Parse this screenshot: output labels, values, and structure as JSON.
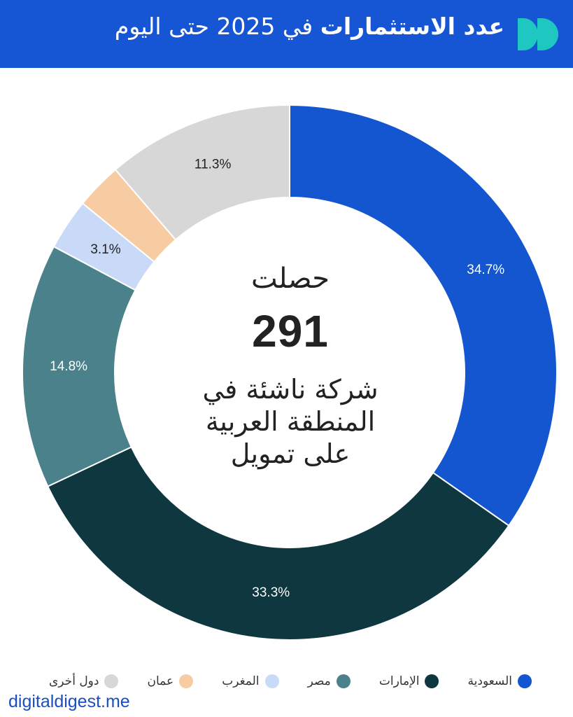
{
  "header": {
    "title_bold": "عدد الاستثمارات",
    "title_rest": "في 2025 حتى اليوم",
    "logo_color": "#1ec8c0"
  },
  "center": {
    "top": "حصلت",
    "number": "291",
    "line1": "شركة ناشئة في",
    "line2": "المنطقة العربية",
    "line3": "على تمويل"
  },
  "chart_data": {
    "type": "pie",
    "donut": true,
    "categories": [
      "السعودية",
      "الإمارات",
      "مصر",
      "المغرب",
      "عمان",
      "دول أخرى"
    ],
    "values": [
      34.7,
      33.3,
      14.8,
      3.1,
      2.8,
      11.3
    ],
    "labels": [
      "34.7%",
      "33.3%",
      "14.8%",
      "3.1%",
      "",
      "11.3%"
    ],
    "colors": [
      "#1455d0",
      "#0e3740",
      "#4a818a",
      "#c9d9f8",
      "#f8cca2",
      "#d7d7d7"
    ],
    "label_colors": [
      "#ffffff",
      "#ffffff",
      "#ffffff",
      "#222222",
      "#222222",
      "#222222"
    ],
    "legend_position": "bottom",
    "start_angle": "top",
    "direction": "clockwise"
  },
  "legend": [
    {
      "label": "السعودية",
      "color": "#1455d0"
    },
    {
      "label": "الإمارات",
      "color": "#0e3740"
    },
    {
      "label": "مصر",
      "color": "#4a818a"
    },
    {
      "label": "المغرب",
      "color": "#c9d9f8"
    },
    {
      "label": "عمان",
      "color": "#f8cca2"
    },
    {
      "label": "دول أخرى",
      "color": "#d7d7d7"
    }
  ],
  "footer": {
    "site": "digitaldigest.me"
  }
}
